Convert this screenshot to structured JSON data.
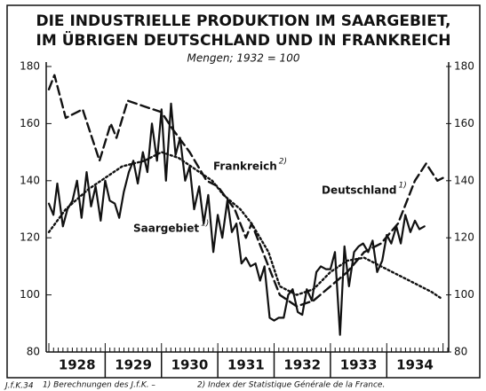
{
  "chart_data": {
    "type": "line",
    "title": "DIE INDUSTRIELLE PRODUKTION IM SAARGEBIET,",
    "title_line2": "IM ÜBRIGEN DEUTSCHLAND UND IN FRANKREICH",
    "subtitle": "Mengen; 1932 = 100",
    "xlim": [
      1928,
      1935.1
    ],
    "xticks": [
      {
        "value": 1928.5,
        "label": "1928"
      },
      {
        "value": 1929.5,
        "label": "1929"
      },
      {
        "value": 1930.5,
        "label": "1930"
      },
      {
        "value": 1931.5,
        "label": "1931"
      },
      {
        "value": 1932.5,
        "label": "1932"
      },
      {
        "value": 1933.5,
        "label": "1933"
      },
      {
        "value": 1934.5,
        "label": "1934"
      }
    ],
    "ylim": [
      80,
      180
    ],
    "yticks": [
      80,
      100,
      120,
      140,
      160,
      180
    ],
    "series": [
      {
        "name": "Saargebiet",
        "footnote": "1)",
        "color": "#111111",
        "style": "solid",
        "x": [
          1928.0,
          1928.08,
          1928.15,
          1928.25,
          1928.33,
          1928.42,
          1928.5,
          1928.58,
          1928.67,
          1928.75,
          1928.83,
          1928.92,
          1929.0,
          1929.08,
          1929.17,
          1929.25,
          1929.33,
          1929.42,
          1929.5,
          1929.58,
          1929.67,
          1929.75,
          1929.83,
          1929.92,
          1930.0,
          1930.08,
          1930.17,
          1930.25,
          1930.33,
          1930.42,
          1930.5,
          1930.58,
          1930.67,
          1930.75,
          1930.83,
          1930.92,
          1931.0,
          1931.08,
          1931.17,
          1931.25,
          1931.33,
          1931.42,
          1931.5,
          1931.58,
          1931.67,
          1931.75,
          1931.83,
          1931.92,
          1932.0,
          1932.08,
          1932.17,
          1932.25,
          1932.33,
          1932.42,
          1932.5,
          1932.58,
          1932.67,
          1932.75,
          1932.83,
          1932.92,
          1933.0,
          1933.08,
          1933.17,
          1933.25,
          1933.33,
          1933.42,
          1933.5,
          1933.58,
          1933.67,
          1933.75,
          1933.83,
          1933.92,
          1934.0,
          1934.08,
          1934.17,
          1934.25,
          1934.33,
          1934.42,
          1934.5,
          1934.58,
          1934.67
        ],
        "values": [
          132,
          128,
          139,
          124,
          130,
          133,
          140,
          127,
          143,
          131,
          138,
          126,
          140,
          133,
          132,
          127,
          136,
          143,
          147,
          139,
          150,
          143,
          160,
          147,
          165,
          140,
          167,
          149,
          155,
          140,
          145,
          130,
          138,
          125,
          135,
          115,
          128,
          120,
          133,
          122,
          125,
          111,
          113,
          110,
          111,
          105,
          110,
          92,
          91,
          92,
          92,
          100,
          102,
          94,
          93,
          102,
          98,
          108,
          110,
          109,
          109,
          115,
          86,
          117,
          103,
          115,
          117,
          118,
          115,
          119,
          108,
          112,
          121,
          118,
          124,
          118,
          128,
          122,
          126,
          123,
          124
        ]
      },
      {
        "name": "Deutschland",
        "footnote": "1)",
        "color": "#111111",
        "style": "dashed",
        "x": [
          1928.0,
          1928.1,
          1928.3,
          1928.6,
          1928.9,
          1929.1,
          1929.2,
          1929.4,
          1929.7,
          1930.0,
          1930.2,
          1930.5,
          1930.8,
          1931.0,
          1931.3,
          1931.5,
          1931.6,
          1931.9,
          1932.1,
          1932.4,
          1932.7,
          1933.0,
          1933.3,
          1933.6,
          1933.9,
          1934.2,
          1934.5,
          1934.7,
          1934.9,
          1935.0
        ],
        "values": [
          172,
          177,
          162,
          165,
          147,
          160,
          155,
          168,
          166,
          164,
          158,
          150,
          140,
          138,
          130,
          120,
          125,
          110,
          100,
          96,
          98,
          103,
          108,
          115,
          118,
          125,
          140,
          146,
          140,
          141
        ]
      },
      {
        "name": "Frankreich",
        "footnote": "2)",
        "color": "#111111",
        "style": "dotted",
        "x": [
          1928.0,
          1928.3,
          1928.7,
          1929.0,
          1929.3,
          1929.7,
          1930.0,
          1930.3,
          1930.6,
          1930.9,
          1931.1,
          1931.4,
          1931.6,
          1931.9,
          1932.1,
          1932.4,
          1932.7,
          1933.0,
          1933.3,
          1933.6,
          1933.9,
          1934.2,
          1934.5,
          1934.8,
          1934.95
        ],
        "values": [
          122,
          130,
          137,
          141,
          145,
          147,
          150,
          148,
          144,
          140,
          135,
          130,
          125,
          115,
          103,
          100,
          102,
          108,
          112,
          113,
          110,
          107,
          104,
          101,
          99
        ]
      }
    ],
    "source": "J.f.K.34",
    "footnotes": [
      "1) Berechnungen des J.f.K. –",
      "2) Index der Statistique Générale de la France."
    ]
  }
}
